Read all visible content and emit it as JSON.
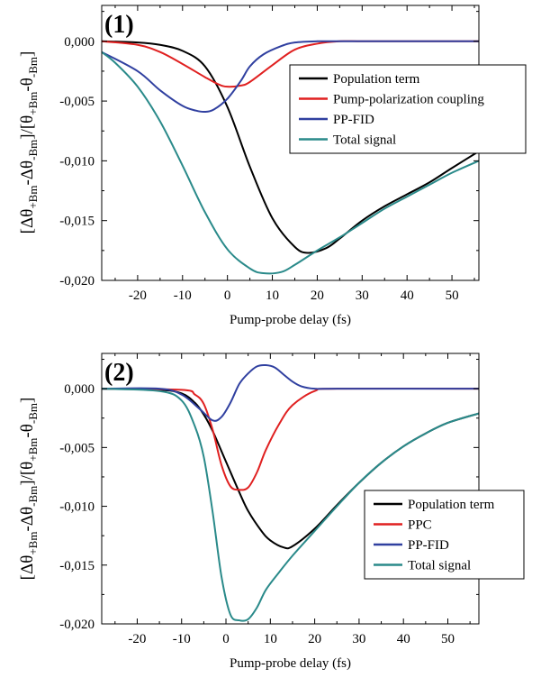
{
  "chart_data": [
    {
      "type": "line",
      "panel_label": "(1)",
      "xlabel": "Pump-probe delay (fs)",
      "ylabel_parts": [
        "[Δθ",
        "+Bm",
        "-Δθ",
        "-Bm",
        "]/[θ",
        "+Bm",
        "-θ",
        "-Bm",
        "]"
      ],
      "xlim": [
        -28,
        56
      ],
      "ylim": [
        -0.02,
        0.003
      ],
      "xticks": [
        -20,
        -10,
        0,
        10,
        20,
        30,
        40,
        50
      ],
      "yticks": [
        0.0,
        -0.005,
        -0.01,
        -0.015,
        -0.02
      ],
      "ytick_labels": [
        "0,000",
        "-0,005",
        "-0,010",
        "-0,015",
        "-0,020"
      ],
      "legend_position": "top-right",
      "series": [
        {
          "name": "Population term",
          "color": "#000000",
          "x": [
            -28,
            -20,
            -15,
            -10,
            -5,
            0,
            5,
            10,
            15,
            18,
            22,
            25,
            30,
            35,
            40,
            45,
            50,
            56
          ],
          "y": [
            0.0,
            -0.0001,
            -0.0003,
            -0.0008,
            -0.0021,
            -0.0055,
            -0.0105,
            -0.0148,
            -0.0172,
            -0.0177,
            -0.0173,
            -0.0165,
            -0.015,
            -0.0138,
            -0.0128,
            -0.0118,
            -0.0106,
            -0.0092
          ]
        },
        {
          "name": "Pump-polarization coupling",
          "color": "#e02020",
          "x": [
            -28,
            -20,
            -15,
            -10,
            -5,
            -2,
            0,
            3,
            5,
            10,
            15,
            20,
            25,
            30,
            40,
            56
          ],
          "y": [
            0.0,
            -0.0003,
            -0.0009,
            -0.0019,
            -0.003,
            -0.0036,
            -0.0038,
            -0.0037,
            -0.0034,
            -0.002,
            -0.0007,
            -0.0002,
            0.0,
            0.0,
            0.0,
            0.0
          ]
        },
        {
          "name": "PP-FID",
          "color": "#3040a0",
          "x": [
            -28,
            -20,
            -15,
            -10,
            -7,
            -5,
            -3,
            0,
            3,
            5,
            8,
            12,
            15,
            20,
            25,
            30,
            40,
            56
          ],
          "y": [
            -0.0009,
            -0.0025,
            -0.0041,
            -0.0054,
            -0.0058,
            -0.0059,
            -0.0057,
            -0.0048,
            -0.0033,
            -0.0021,
            -0.0011,
            -0.0004,
            -0.0001,
            0.0,
            0.0,
            0.0,
            0.0,
            0.0
          ]
        },
        {
          "name": "Total signal",
          "color": "#2a8a8a",
          "x": [
            -28,
            -25,
            -20,
            -15,
            -10,
            -5,
            0,
            5,
            8,
            12,
            15,
            20,
            25,
            30,
            35,
            40,
            45,
            50,
            56
          ],
          "y": [
            -0.0009,
            -0.0018,
            -0.0038,
            -0.0067,
            -0.0104,
            -0.0143,
            -0.0174,
            -0.019,
            -0.0194,
            -0.0193,
            -0.0187,
            -0.0175,
            -0.0164,
            -0.0152,
            -0.014,
            -0.013,
            -0.012,
            -0.011,
            -0.01
          ]
        }
      ]
    },
    {
      "type": "line",
      "panel_label": "(2)",
      "xlabel": "Pump-probe delay (fs)",
      "ylabel_parts": [
        "[Δθ",
        "+Bm",
        "-Δθ",
        "-Bm",
        "]/[θ",
        "+Bm",
        "-θ",
        "-Bm",
        "]"
      ],
      "xlim": [
        -28,
        57
      ],
      "ylim": [
        -0.02,
        0.003
      ],
      "xticks": [
        -20,
        -10,
        0,
        10,
        20,
        30,
        40,
        50
      ],
      "yticks": [
        0.0,
        -0.005,
        -0.01,
        -0.015,
        -0.02
      ],
      "ytick_labels": [
        "0,000",
        "-0,005",
        "-0,010",
        "-0,015",
        "-0,020"
      ],
      "legend_position": "bottom-right",
      "series": [
        {
          "name": "Population term",
          "color": "#000000",
          "x": [
            -28,
            -15,
            -10,
            -7,
            -5,
            -3,
            0,
            3,
            5,
            8,
            10,
            13,
            15,
            20,
            25,
            30,
            35,
            40,
            45,
            50,
            57
          ],
          "y": [
            0.0,
            -0.0001,
            -0.0004,
            -0.0012,
            -0.0022,
            -0.0036,
            -0.0062,
            -0.0088,
            -0.0104,
            -0.0121,
            -0.0129,
            -0.0135,
            -0.0134,
            -0.0119,
            -0.0099,
            -0.008,
            -0.0063,
            -0.0049,
            -0.0038,
            -0.0029,
            -0.0021
          ]
        },
        {
          "name": "PPC",
          "color": "#e02020",
          "x": [
            -28,
            -10,
            -7,
            -5,
            -3,
            -1,
            1,
            3,
            5,
            7,
            9,
            12,
            15,
            20,
            25,
            57
          ],
          "y": [
            0.0,
            -0.0001,
            -0.0005,
            -0.0013,
            -0.0035,
            -0.0065,
            -0.0083,
            -0.0086,
            -0.0084,
            -0.0071,
            -0.0052,
            -0.003,
            -0.0014,
            -0.0002,
            0.0,
            0.0
          ]
        },
        {
          "name": "PP-FID",
          "color": "#3040a0",
          "x": [
            -28,
            -15,
            -10,
            -6,
            -3,
            -1,
            1,
            3,
            5,
            7,
            9,
            11,
            13,
            15,
            17,
            20,
            25,
            57
          ],
          "y": [
            0.0,
            0.0,
            -0.0005,
            -0.0017,
            -0.0027,
            -0.0024,
            -0.0012,
            0.0004,
            0.0013,
            0.0019,
            0.002,
            0.0018,
            0.0012,
            0.0006,
            0.0002,
            0.0,
            0.0,
            0.0
          ]
        },
        {
          "name": "Total signal",
          "color": "#2a8a8a",
          "x": [
            -28,
            -15,
            -10,
            -7,
            -5,
            -3,
            -1,
            1,
            3,
            5,
            7,
            9,
            12,
            15,
            20,
            25,
            30,
            35,
            40,
            45,
            50,
            57
          ],
          "y": [
            0.0,
            -0.0002,
            -0.001,
            -0.0032,
            -0.0058,
            -0.0105,
            -0.016,
            -0.0192,
            -0.0197,
            -0.0196,
            -0.0186,
            -0.0171,
            -0.0156,
            -0.0142,
            -0.0121,
            -0.01,
            -0.008,
            -0.0063,
            -0.0049,
            -0.0038,
            -0.0029,
            -0.0021
          ]
        }
      ]
    }
  ]
}
